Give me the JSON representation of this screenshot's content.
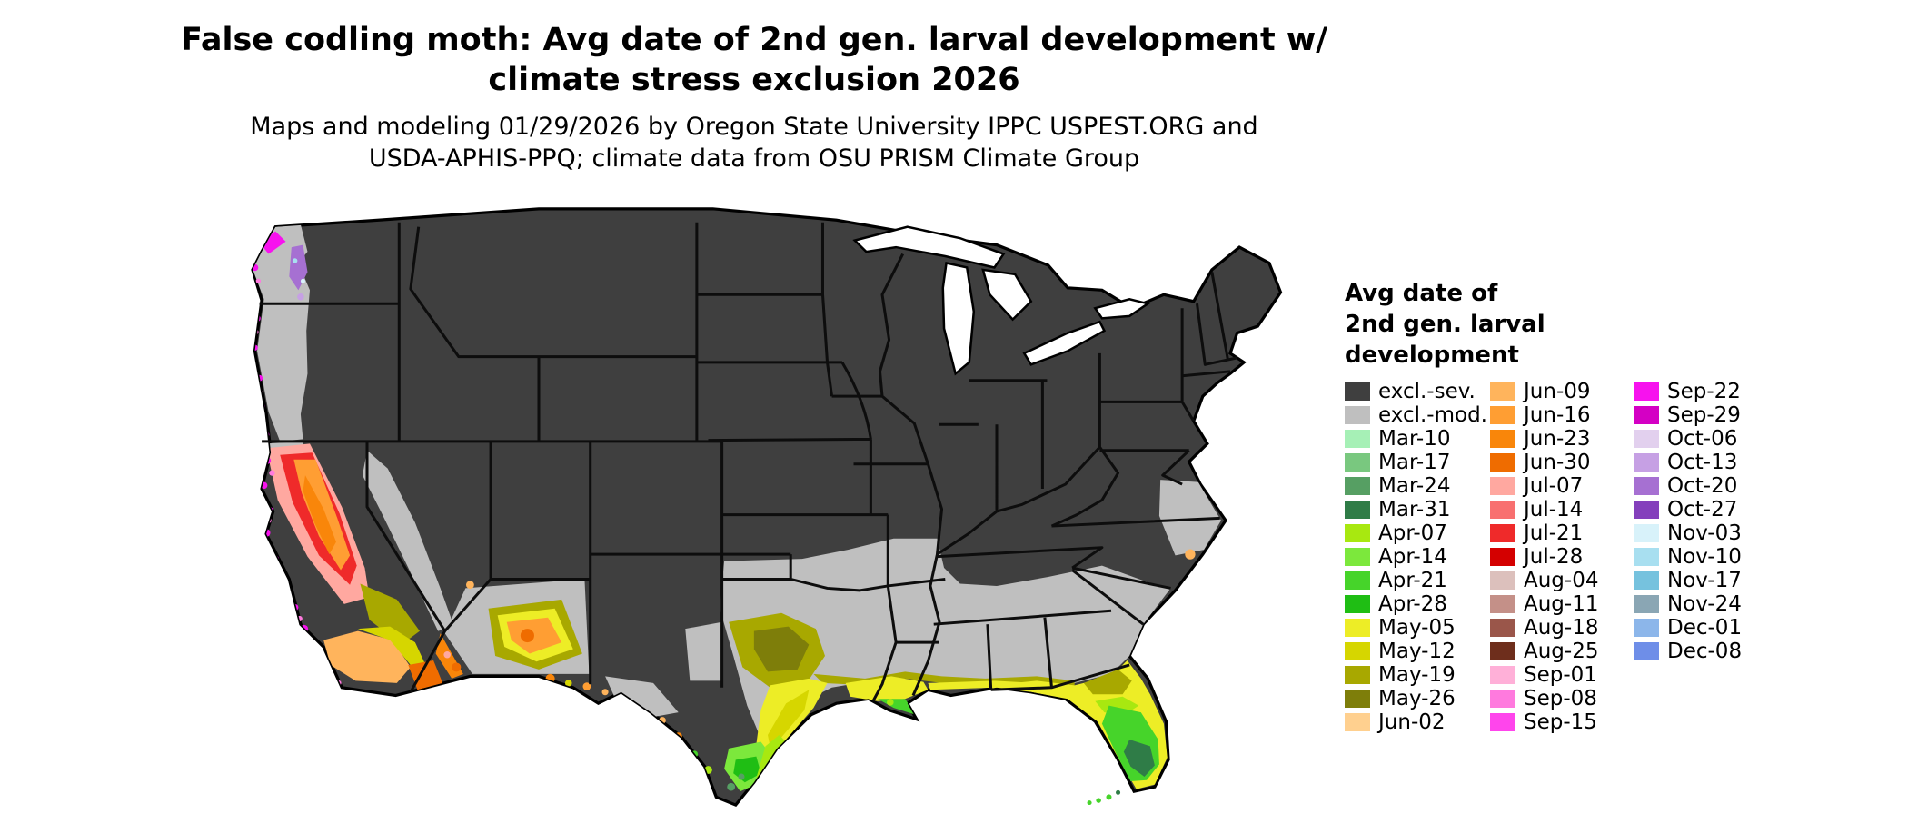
{
  "title": {
    "line1": "False codling moth: Avg date of 2nd gen. larval development w/",
    "line2": "climate stress exclusion 2026"
  },
  "subtitle": {
    "line1": "Maps and modeling 01/29/2026 by Oregon State University IPPC USPEST.ORG and",
    "line2": "USDA-APHIS-PPQ; climate data from OSU PRISM Climate Group"
  },
  "legend": {
    "title_lines": [
      "Avg date of",
      "2nd gen. larval",
      "development"
    ],
    "columns": [
      {
        "items": [
          {
            "label": "excl.-sev.",
            "color": "#3F3F3F"
          },
          {
            "label": "excl.-mod.",
            "color": "#BFBFBF"
          },
          {
            "label": "Mar-10",
            "color": "#A6F0B6"
          },
          {
            "label": "Mar-17",
            "color": "#79C87F"
          },
          {
            "label": "Mar-24",
            "color": "#569F63"
          },
          {
            "label": "Mar-31",
            "color": "#2F7C47"
          },
          {
            "label": "Apr-07",
            "color": "#A8E810"
          },
          {
            "label": "Apr-14",
            "color": "#7CE83C"
          },
          {
            "label": "Apr-21",
            "color": "#46D42A"
          },
          {
            "label": "Apr-28",
            "color": "#1FBE14"
          },
          {
            "label": "May-05",
            "color": "#EDED26"
          },
          {
            "label": "May-12",
            "color": "#D6D600"
          },
          {
            "label": "May-19",
            "color": "#A8A800"
          },
          {
            "label": "May-26",
            "color": "#7E7E0A"
          },
          {
            "label": "Jun-02",
            "color": "#FFD08F"
          }
        ]
      },
      {
        "items": [
          {
            "label": "Jun-09",
            "color": "#FFB45C"
          },
          {
            "label": "Jun-16",
            "color": "#FF9E33"
          },
          {
            "label": "Jun-23",
            "color": "#F9860A"
          },
          {
            "label": "Jun-30",
            "color": "#EF6C00"
          },
          {
            "label": "Jul-07",
            "color": "#FFA8A0"
          },
          {
            "label": "Jul-14",
            "color": "#F87070"
          },
          {
            "label": "Jul-21",
            "color": "#EF2A2A"
          },
          {
            "label": "Jul-28",
            "color": "#D40000"
          },
          {
            "label": "Aug-04",
            "color": "#DCC0BC"
          },
          {
            "label": "Aug-11",
            "color": "#C49088"
          },
          {
            "label": "Aug-18",
            "color": "#9A564A"
          },
          {
            "label": "Aug-25",
            "color": "#6E2E1C"
          },
          {
            "label": "Sep-01",
            "color": "#FFB0D8"
          },
          {
            "label": "Sep-08",
            "color": "#FF7ADE"
          },
          {
            "label": "Sep-15",
            "color": "#FF45EC"
          }
        ]
      },
      {
        "items": [
          {
            "label": "Sep-22",
            "color": "#F712EE"
          },
          {
            "label": "Sep-29",
            "color": "#D400C4"
          },
          {
            "label": "Oct-06",
            "color": "#E2D0EE"
          },
          {
            "label": "Oct-13",
            "color": "#C6A0E4"
          },
          {
            "label": "Oct-20",
            "color": "#A670D2"
          },
          {
            "label": "Oct-27",
            "color": "#8440BC"
          },
          {
            "label": "Nov-03",
            "color": "#D8F2FA"
          },
          {
            "label": "Nov-10",
            "color": "#A8DFF0"
          },
          {
            "label": "Nov-17",
            "color": "#76C2DE"
          },
          {
            "label": "Nov-24",
            "color": "#8AA6B4"
          },
          {
            "label": "Dec-01",
            "color": "#8CB6EA"
          },
          {
            "label": "Dec-08",
            "color": "#6E8EE8"
          }
        ]
      }
    ]
  }
}
